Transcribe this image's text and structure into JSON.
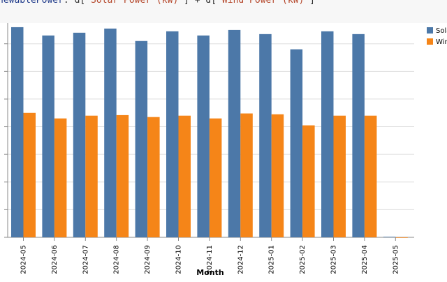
{
  "code": {
    "var_name": "newablePower",
    "sep": ": ",
    "d1": "d[",
    "field1": "\"Solar Power (kW)\"",
    "mid": "] + d[",
    "field2": "\"Wind Power (kW)\"",
    "tail": "]"
  },
  "chart_data": {
    "type": "bar",
    "xlabel": "Month",
    "ylabel": "",
    "categories": [
      "2024-05",
      "2024-06",
      "2024-07",
      "2024-08",
      "2024-09",
      "2024-10",
      "2024-11",
      "2024-12",
      "2025-01",
      "2025-02",
      "2025-03",
      "2025-04",
      "2025-05"
    ],
    "series": [
      {
        "name": "Solar",
        "color": "#4c78a8",
        "values": [
          7.6,
          7.3,
          7.4,
          7.55,
          7.1,
          7.45,
          7.3,
          7.5,
          7.35,
          6.8,
          7.45,
          7.35,
          0.02
        ]
      },
      {
        "name": "Wind",
        "color": "#f58518",
        "values": [
          4.5,
          4.3,
          4.4,
          4.42,
          4.35,
          4.4,
          4.3,
          4.48,
          4.45,
          4.05,
          4.4,
          4.4,
          0.0
        ]
      }
    ],
    "ylim": [
      0,
      7.75
    ],
    "yticks": [
      0,
      1,
      2,
      3,
      4,
      5,
      6,
      7
    ],
    "grid": true,
    "legend_position": "top-right"
  }
}
